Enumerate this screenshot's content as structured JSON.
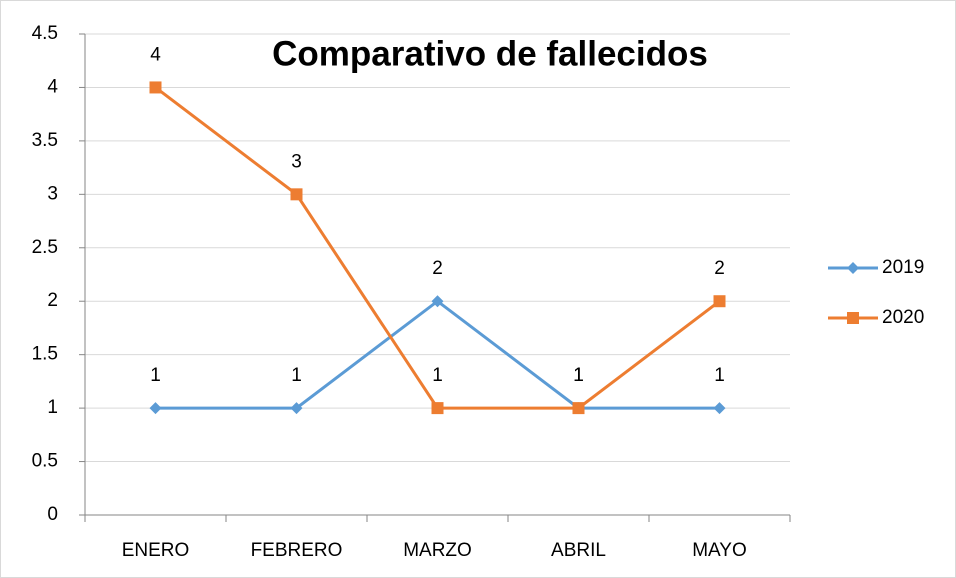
{
  "chart_data": {
    "type": "line",
    "title": "Comparativo de fallecidos",
    "categories": [
      "ENERO",
      "FEBRERO",
      "MARZO",
      "ABRIL",
      "MAYO"
    ],
    "series": [
      {
        "name": "2019",
        "color": "#5b9bd5",
        "marker": "diamond",
        "values": [
          1,
          1,
          2,
          1,
          1
        ]
      },
      {
        "name": "2020",
        "color": "#ed7d31",
        "marker": "square",
        "values": [
          4,
          3,
          1,
          1,
          2
        ]
      }
    ],
    "ylim": [
      0,
      4.5
    ],
    "yticks": [
      0,
      0.5,
      1,
      1.5,
      2,
      2.5,
      3,
      3.5,
      4,
      4.5
    ],
    "grid": true,
    "legend": "right",
    "data_labels": true
  }
}
